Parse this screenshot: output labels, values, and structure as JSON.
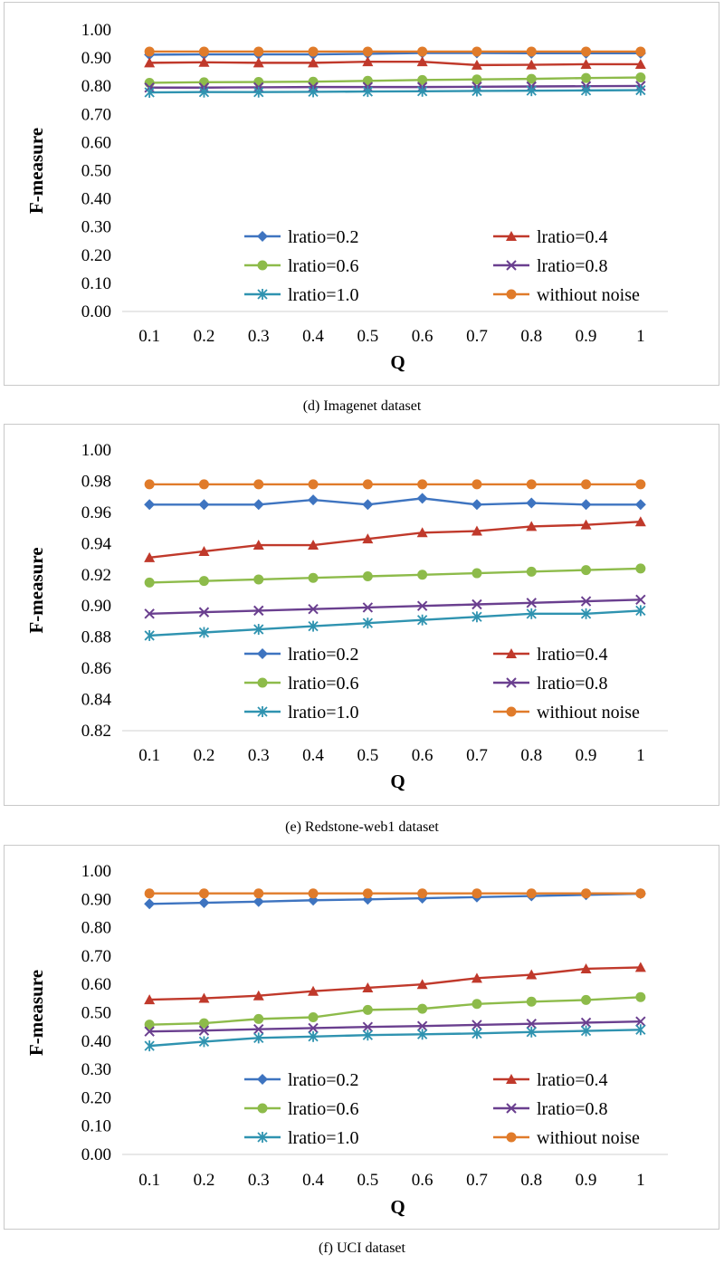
{
  "captions": [
    "(d) Imagenet dataset",
    "(e) Redstone-web1 dataset",
    "(f) UCI dataset"
  ],
  "series_styles": [
    {
      "name": "lratio=0.2",
      "color": "#3e74c0",
      "marker": "diamond"
    },
    {
      "name": "lratio=0.4",
      "color": "#c0392b",
      "marker": "triangle"
    },
    {
      "name": "lratio=0.6",
      "color": "#8dbb4a",
      "marker": "circle"
    },
    {
      "name": "lratio=0.8",
      "color": "#6a3f8f",
      "marker": "x"
    },
    {
      "name": "lratio=1.0",
      "color": "#2f93b0",
      "marker": "star"
    },
    {
      "name": "withiout noise",
      "color": "#e07b2a",
      "marker": "circle"
    }
  ],
  "chart_data": [
    {
      "type": "line",
      "xlabel": "Q",
      "ylabel": "F-measure",
      "categories": [
        "0.1",
        "0.2",
        "0.3",
        "0.4",
        "0.5",
        "0.6",
        "0.7",
        "0.8",
        "0.9",
        "1"
      ],
      "ylim": [
        0,
        1
      ],
      "yticks": [
        "0.00",
        "0.10",
        "0.20",
        "0.30",
        "0.40",
        "0.50",
        "0.60",
        "0.70",
        "0.80",
        "0.90",
        "1.00"
      ],
      "grid": false,
      "legend": "center",
      "series": [
        {
          "name": "lratio=0.2",
          "values": [
            0.912,
            0.913,
            0.913,
            0.913,
            0.915,
            0.918,
            0.918,
            0.917,
            0.917,
            0.917
          ]
        },
        {
          "name": "lratio=0.4",
          "values": [
            0.883,
            0.885,
            0.883,
            0.883,
            0.887,
            0.887,
            0.875,
            0.876,
            0.878,
            0.878
          ]
        },
        {
          "name": "lratio=0.6",
          "values": [
            0.812,
            0.814,
            0.815,
            0.816,
            0.819,
            0.822,
            0.824,
            0.826,
            0.829,
            0.831
          ]
        },
        {
          "name": "lratio=0.8",
          "values": [
            0.795,
            0.795,
            0.796,
            0.797,
            0.797,
            0.797,
            0.798,
            0.799,
            0.8,
            0.801
          ]
        },
        {
          "name": "lratio=1.0",
          "values": [
            0.778,
            0.779,
            0.779,
            0.78,
            0.781,
            0.782,
            0.783,
            0.784,
            0.785,
            0.786
          ]
        },
        {
          "name": "withiout noise",
          "values": [
            0.923,
            0.923,
            0.923,
            0.923,
            0.923,
            0.923,
            0.923,
            0.923,
            0.923,
            0.923
          ]
        }
      ]
    },
    {
      "type": "line",
      "xlabel": "Q",
      "ylabel": "F-measure",
      "categories": [
        "0.1",
        "0.2",
        "0.3",
        "0.4",
        "0.5",
        "0.6",
        "0.7",
        "0.8",
        "0.9",
        "1"
      ],
      "ylim": [
        0.82,
        1
      ],
      "yticks": [
        "0.82",
        "0.84",
        "0.86",
        "0.88",
        "0.90",
        "0.92",
        "0.94",
        "0.96",
        "0.98",
        "1.00"
      ],
      "grid": false,
      "legend": "center",
      "series": [
        {
          "name": "lratio=0.2",
          "values": [
            0.965,
            0.965,
            0.965,
            0.968,
            0.965,
            0.969,
            0.965,
            0.966,
            0.965,
            0.965
          ]
        },
        {
          "name": "lratio=0.4",
          "values": [
            0.931,
            0.935,
            0.939,
            0.939,
            0.943,
            0.947,
            0.948,
            0.951,
            0.952,
            0.954
          ]
        },
        {
          "name": "lratio=0.6",
          "values": [
            0.915,
            0.916,
            0.917,
            0.918,
            0.919,
            0.92,
            0.921,
            0.922,
            0.923,
            0.924
          ]
        },
        {
          "name": "lratio=0.8",
          "values": [
            0.895,
            0.896,
            0.897,
            0.898,
            0.899,
            0.9,
            0.901,
            0.902,
            0.903,
            0.904
          ]
        },
        {
          "name": "lratio=1.0",
          "values": [
            0.881,
            0.883,
            0.885,
            0.887,
            0.889,
            0.891,
            0.893,
            0.895,
            0.895,
            0.897
          ]
        },
        {
          "name": "withiout noise",
          "values": [
            0.978,
            0.978,
            0.978,
            0.978,
            0.978,
            0.978,
            0.978,
            0.978,
            0.978,
            0.978
          ]
        }
      ]
    },
    {
      "type": "line",
      "xlabel": "Q",
      "ylabel": "F-measure",
      "categories": [
        "0.1",
        "0.2",
        "0.3",
        "0.4",
        "0.5",
        "0.6",
        "0.7",
        "0.8",
        "0.9",
        "1"
      ],
      "ylim": [
        0,
        1
      ],
      "yticks": [
        "0.00",
        "0.10",
        "0.20",
        "0.30",
        "0.40",
        "0.50",
        "0.60",
        "0.70",
        "0.80",
        "0.90",
        "1.00"
      ],
      "grid": false,
      "legend": "center",
      "series": [
        {
          "name": "lratio=0.2",
          "values": [
            0.884,
            0.888,
            0.892,
            0.897,
            0.9,
            0.904,
            0.908,
            0.912,
            0.916,
            0.92
          ]
        },
        {
          "name": "lratio=0.4",
          "values": [
            0.546,
            0.551,
            0.56,
            0.576,
            0.588,
            0.6,
            0.622,
            0.634,
            0.655,
            0.66
          ]
        },
        {
          "name": "lratio=0.6",
          "values": [
            0.458,
            0.463,
            0.478,
            0.484,
            0.51,
            0.514,
            0.531,
            0.539,
            0.545,
            0.555
          ]
        },
        {
          "name": "lratio=0.8",
          "values": [
            0.434,
            0.437,
            0.442,
            0.446,
            0.45,
            0.453,
            0.457,
            0.461,
            0.465,
            0.469
          ]
        },
        {
          "name": "lratio=1.0",
          "values": [
            0.383,
            0.398,
            0.411,
            0.416,
            0.421,
            0.424,
            0.427,
            0.432,
            0.436,
            0.44
          ]
        },
        {
          "name": "withiout noise",
          "values": [
            0.921,
            0.921,
            0.921,
            0.921,
            0.921,
            0.921,
            0.921,
            0.921,
            0.921,
            0.921
          ]
        }
      ]
    }
  ]
}
